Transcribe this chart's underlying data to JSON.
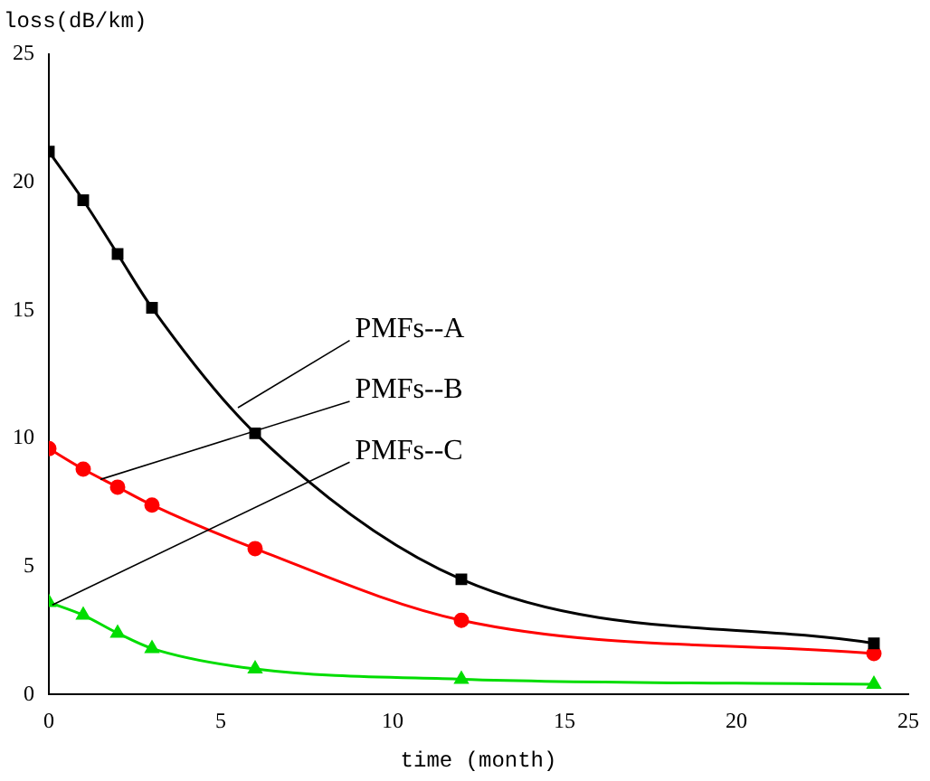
{
  "chart_data": {
    "type": "line",
    "xlabel": "time (month)",
    "ylabel": "loss(dB/km)",
    "x": [
      0,
      1,
      2,
      3,
      6,
      12,
      24
    ],
    "series": [
      {
        "color": "#000000",
        "marker": "square",
        "values": [
          21.2,
          19.3,
          17.2,
          15.1,
          10.2,
          4.5,
          2.0
        ]
      },
      {
        "color": "#ff0000",
        "marker": "circle",
        "values": [
          9.6,
          8.8,
          8.1,
          7.4,
          5.7,
          2.9,
          1.6
        ]
      },
      {
        "color": "#00dd00",
        "marker": "triangle",
        "values": [
          3.6,
          3.1,
          2.4,
          1.8,
          1.0,
          0.6,
          0.4
        ]
      }
    ],
    "xlim": [
      0,
      25
    ],
    "xticks": [
      0,
      5,
      10,
      15,
      20,
      25
    ],
    "ylim": [
      0,
      25
    ],
    "yticks": [
      0,
      5,
      10,
      15,
      20,
      25
    ],
    "grid": false,
    "legend": false,
    "annotations": [
      {
        "text": "PMFs--A",
        "x": 5.5,
        "y": 11.2
      },
      {
        "text": "PMFs--B",
        "x": 1.5,
        "y": 8.4
      },
      {
        "text": "PMFs--C",
        "x": 0.1,
        "y": 3.5
      }
    ]
  }
}
